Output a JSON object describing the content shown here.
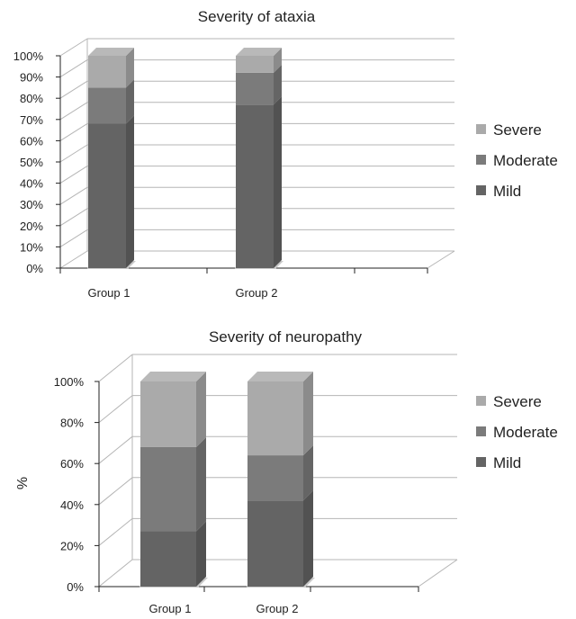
{
  "chart_data": [
    {
      "type": "bar",
      "stacked": true,
      "percent_stacked": true,
      "three_d": true,
      "title": "Severity of ataxia",
      "xlabel": "",
      "ylabel": "",
      "ylim": [
        0,
        100
      ],
      "yticks": [
        "0%",
        "10%",
        "20%",
        "30%",
        "40%",
        "50%",
        "60%",
        "70%",
        "80%",
        "90%",
        "100%"
      ],
      "categories": [
        "Group 1",
        "Group 2"
      ],
      "series": [
        {
          "name": "Mild",
          "values": [
            68,
            77
          ],
          "color": "#646464"
        },
        {
          "name": "Moderate",
          "values": [
            17,
            15
          ],
          "color": "#7b7b7b"
        },
        {
          "name": "Severe",
          "values": [
            15,
            8
          ],
          "color": "#aaaaaa"
        }
      ],
      "legend": "right",
      "grid": true
    },
    {
      "type": "bar",
      "stacked": true,
      "percent_stacked": true,
      "three_d": true,
      "title": "Severity of neuropathy",
      "xlabel": "",
      "ylabel": "%",
      "ylim": [
        0,
        100
      ],
      "yticks": [
        "0%",
        "20%",
        "40%",
        "60%",
        "80%",
        "100%"
      ],
      "categories": [
        "Group 1",
        "Group 2"
      ],
      "series": [
        {
          "name": "Mild",
          "values": [
            27,
            42
          ],
          "color": "#646464"
        },
        {
          "name": "Moderate",
          "values": [
            41,
            22
          ],
          "color": "#7b7b7b"
        },
        {
          "name": "Severe",
          "values": [
            32,
            36
          ],
          "color": "#aaaaaa"
        }
      ],
      "legend": "right",
      "grid": true
    }
  ]
}
